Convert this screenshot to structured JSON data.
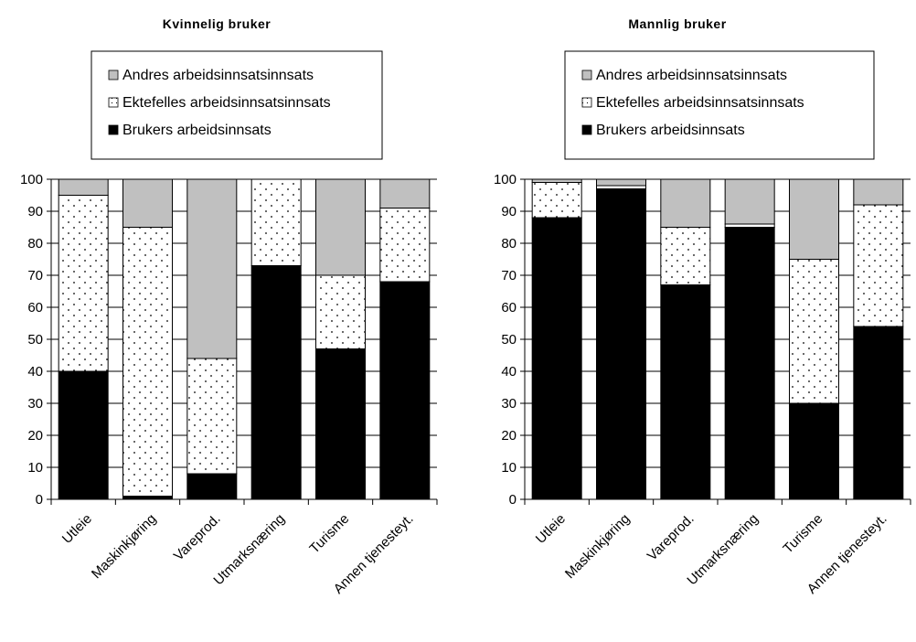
{
  "chart_data": [
    {
      "type": "bar",
      "stacked": true,
      "title": "Kvinnelig bruker",
      "categories": [
        "Utleie",
        "Maskinkjøring",
        "Vareprod.",
        "Utmarksnæring",
        "Turisme",
        "Annen tjenesteyt."
      ],
      "series": [
        {
          "name": "Brukers arbeidsinnsats",
          "values": [
            40,
            1,
            8,
            73,
            47,
            68
          ]
        },
        {
          "name": "Ektefelles arbeidsinnsatsinnsats",
          "values": [
            55,
            84,
            36,
            27,
            23,
            23
          ]
        },
        {
          "name": "Andres arbeidsinnsatsinnsats",
          "values": [
            5,
            15,
            56,
            0,
            30,
            9
          ]
        }
      ],
      "legend_order": [
        "Andres arbeidsinnsatsinnsats",
        "Ektefelles arbeidsinnsatsinnsats",
        "Brukers arbeidsinnsats"
      ],
      "ylim": [
        0,
        100
      ],
      "yticks": [
        0,
        10,
        20,
        30,
        40,
        50,
        60,
        70,
        80,
        90,
        100
      ],
      "grid": true,
      "legend_position": "top"
    },
    {
      "type": "bar",
      "stacked": true,
      "title": "Mannlig bruker",
      "categories": [
        "Utleie",
        "Maskinkjøring",
        "Vareprod.",
        "Utmarksnæring",
        "Turisme",
        "Annen tjenesteyt."
      ],
      "series": [
        {
          "name": "Brukers arbeidsinnsats",
          "values": [
            88,
            97,
            67,
            85,
            30,
            54
          ]
        },
        {
          "name": "Ektefelles arbeidsinnsatsinnsats",
          "values": [
            11,
            1,
            18,
            1,
            45,
            38
          ]
        },
        {
          "name": "Andres arbeidsinnsatsinnsats",
          "values": [
            1,
            2,
            15,
            14,
            25,
            8
          ]
        }
      ],
      "legend_order": [
        "Andres arbeidsinnsatsinnsats",
        "Ektefelles arbeidsinnsatsinnsats",
        "Brukers arbeidsinnsats"
      ],
      "ylim": [
        0,
        100
      ],
      "yticks": [
        0,
        10,
        20,
        30,
        40,
        50,
        60,
        70,
        80,
        90,
        100
      ],
      "grid": true,
      "legend_position": "top"
    }
  ],
  "colors": {
    "brukers": "#000000",
    "ektefelles": "#ffffff",
    "andres": "#c0c0c0",
    "dots": "#000000",
    "grid": "#000000"
  }
}
